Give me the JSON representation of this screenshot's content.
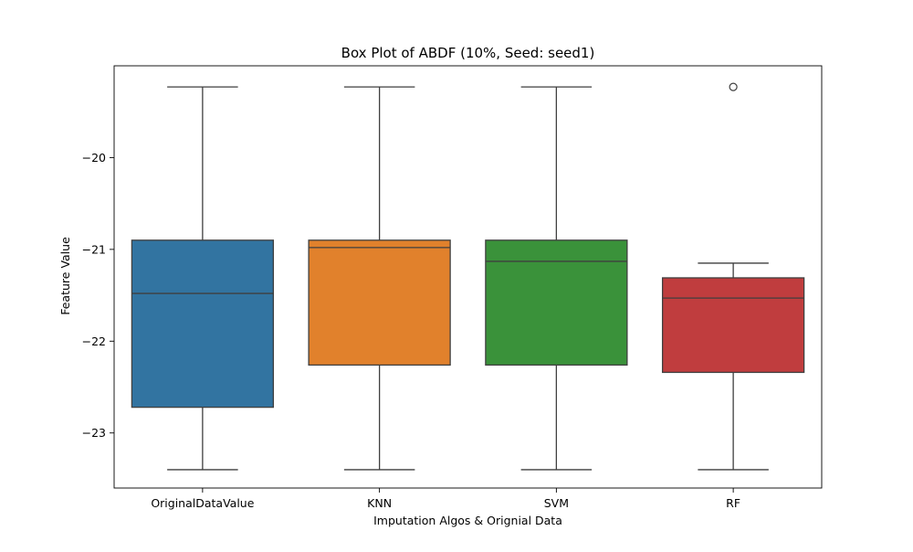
{
  "chart_data": {
    "type": "box",
    "title": "Box Plot of ABDF (10%, Seed: seed1)",
    "xlabel": "Imputation Algos & Orignial Data",
    "ylabel": "Feature Value",
    "categories": [
      "OriginalDataValue",
      "KNN",
      "SVM",
      "RF"
    ],
    "ylim": [
      -23.6,
      -19.0
    ],
    "yticks": [
      -23,
      -22,
      -21,
      -20
    ],
    "ytick_labels": [
      "−23",
      "−22",
      "−21",
      "−20"
    ],
    "grid": false,
    "colors": [
      "#3274a1",
      "#e1812c",
      "#3a923a",
      "#c03d3e"
    ],
    "edge_color": "#3f3f3f",
    "boxes": [
      {
        "name": "OriginalDataValue",
        "whislo": -23.4,
        "q1": -22.72,
        "med": -21.48,
        "q3": -20.9,
        "whishi": -19.23,
        "fliers": []
      },
      {
        "name": "KNN",
        "whislo": -23.4,
        "q1": -22.26,
        "med": -20.98,
        "q3": -20.9,
        "whishi": -19.23,
        "fliers": []
      },
      {
        "name": "SVM",
        "whislo": -23.4,
        "q1": -22.26,
        "med": -21.13,
        "q3": -20.9,
        "whishi": -19.23,
        "fliers": []
      },
      {
        "name": "RF",
        "whislo": -23.4,
        "q1": -22.34,
        "med": -21.53,
        "q3": -21.31,
        "whishi": -21.15,
        "fliers": [
          -19.23
        ]
      }
    ]
  }
}
